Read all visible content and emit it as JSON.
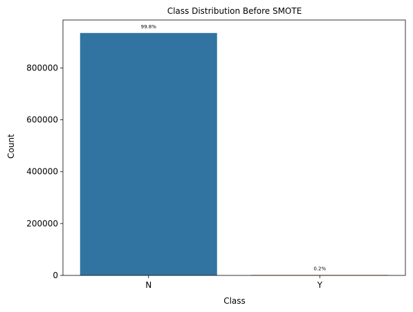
{
  "chart_data": {
    "type": "bar",
    "title": "Class Distribution Before SMOTE",
    "xlabel": "Class",
    "ylabel": "Count",
    "categories": [
      "N",
      "Y"
    ],
    "values": [
      935000,
      1900
    ],
    "data_labels": [
      "99.8%",
      "0.2%"
    ],
    "colors": [
      "#3274a1",
      "#e1812c"
    ],
    "ylim": [
      0,
      985000
    ],
    "yticks": [
      0,
      200000,
      400000,
      600000,
      800000
    ],
    "ytick_labels": [
      "0",
      "200000",
      "400000",
      "600000",
      "800000"
    ],
    "grid": false,
    "legend": "none"
  }
}
